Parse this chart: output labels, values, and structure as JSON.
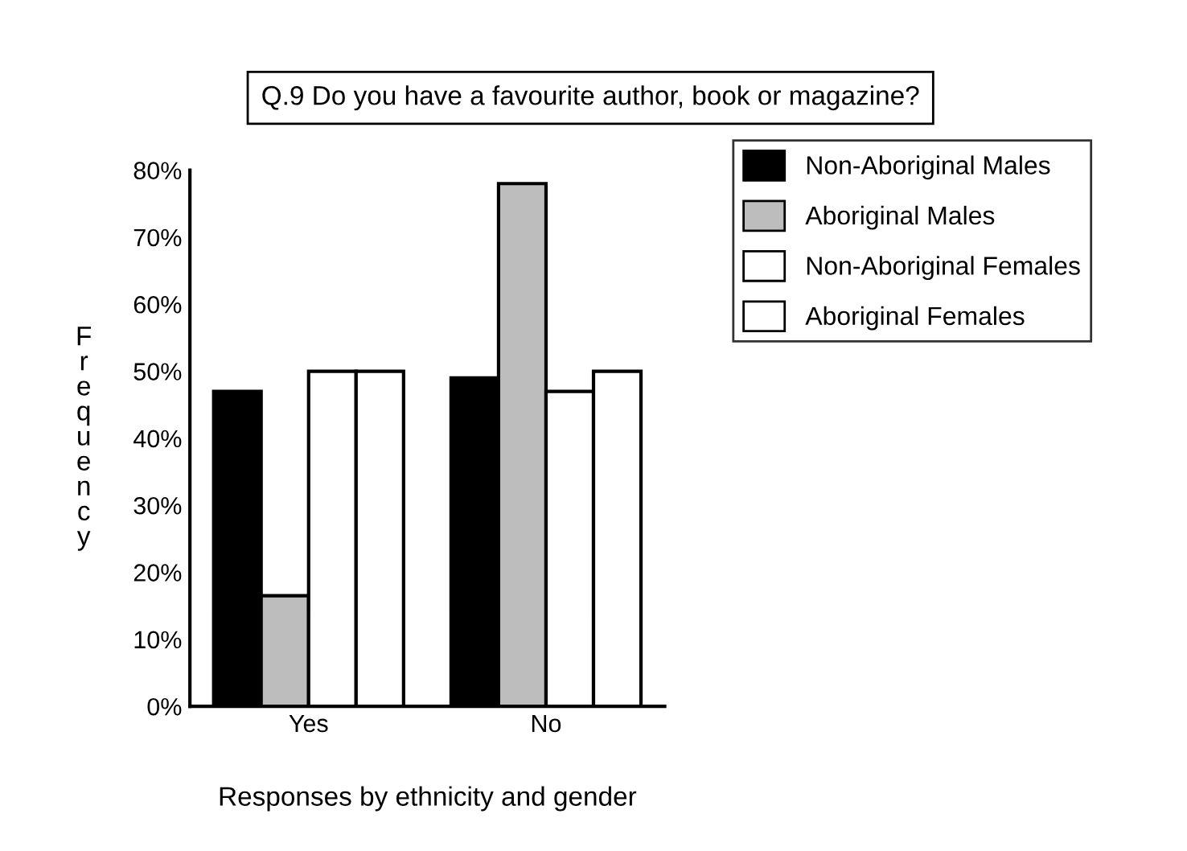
{
  "chart_data": {
    "type": "bar",
    "title": "Q.9 Do you have a favourite author, book or magazine?",
    "xlabel": "Responses by ethnicity and gender",
    "ylabel": "Frequency",
    "categories": [
      "Yes",
      "No"
    ],
    "series": [
      {
        "name": "Non-Aboriginal Males",
        "color": "#000000",
        "values": [
          47,
          49
        ]
      },
      {
        "name": "Aboriginal Males",
        "color": "#bdbdbd",
        "values": [
          16.5,
          78
        ]
      },
      {
        "name": "Non-Aboriginal Females",
        "color": "#ffffff",
        "values": [
          50,
          47
        ]
      },
      {
        "name": "Aboriginal Females",
        "color": "#ffffff",
        "values": [
          50,
          50
        ]
      }
    ],
    "ylim": [
      0,
      80
    ],
    "yticks": [
      {
        "value": 0,
        "label": "0%"
      },
      {
        "value": 10,
        "label": "10%"
      },
      {
        "value": 20,
        "label": "20%"
      },
      {
        "value": 30,
        "label": "30%"
      },
      {
        "value": 40,
        "label": "40%"
      },
      {
        "value": 50,
        "label": "50%"
      },
      {
        "value": 60,
        "label": "60%"
      },
      {
        "value": 70,
        "label": "70%"
      },
      {
        "value": 80,
        "label": "80%"
      }
    ],
    "grid": false,
    "legend": "top right"
  }
}
